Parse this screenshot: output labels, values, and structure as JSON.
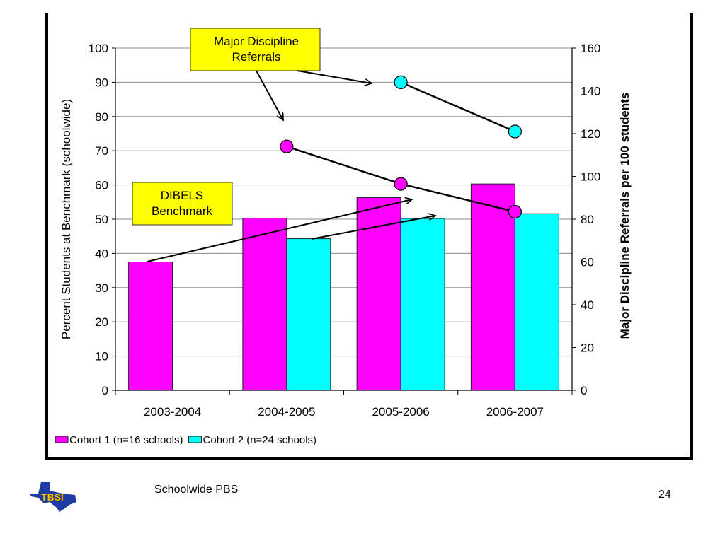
{
  "footer": {
    "title": "Schoolwide PBS",
    "page_number": "24",
    "logo_text": "TBSI"
  },
  "colors": {
    "cohort1": "#ff00ff",
    "cohort2": "#00ffff",
    "callout_fill": "#ffff00"
  },
  "chart_data": {
    "type": "bar",
    "categories": [
      "2003-2004",
      "2004-2005",
      "2005-2006",
      "2006-2007"
    ],
    "series": [
      {
        "name": "Cohort 1 (n=16 schools)",
        "values": [
          37.5,
          50.3,
          56.3,
          60.3
        ]
      },
      {
        "name": "Cohort 2 (n=24 schools)",
        "values": [
          null,
          44.3,
          50.2,
          51.6
        ]
      }
    ],
    "line_series": [
      {
        "name": "Cohort 1 (n=16 schools)",
        "axis": "right",
        "values": [
          null,
          114,
          96.5,
          83.5
        ]
      },
      {
        "name": "Cohort 2 (n=24 schools)",
        "axis": "right",
        "values": [
          null,
          null,
          144,
          121
        ]
      }
    ],
    "ylabel": "Percent Students at Benchmark (schoolwide)",
    "ylabel_right": "Major Discipline Referrals per 100 students",
    "ylim": [
      0,
      100
    ],
    "ylim_right": [
      0,
      160
    ],
    "yticks": [
      "0",
      "10",
      "20",
      "30",
      "40",
      "50",
      "60",
      "70",
      "80",
      "90",
      "100"
    ],
    "yticks_right": [
      "0",
      "20",
      "40",
      "60",
      "80",
      "100",
      "120",
      "140",
      "160"
    ],
    "grid": true,
    "legend_position": "bottom-left",
    "annotations": [
      {
        "lines": [
          "Major Discipline",
          "Referrals"
        ],
        "refers_to": "line_series"
      },
      {
        "lines": [
          "DIBELS",
          "Benchmark"
        ],
        "refers_to": "series"
      }
    ]
  }
}
